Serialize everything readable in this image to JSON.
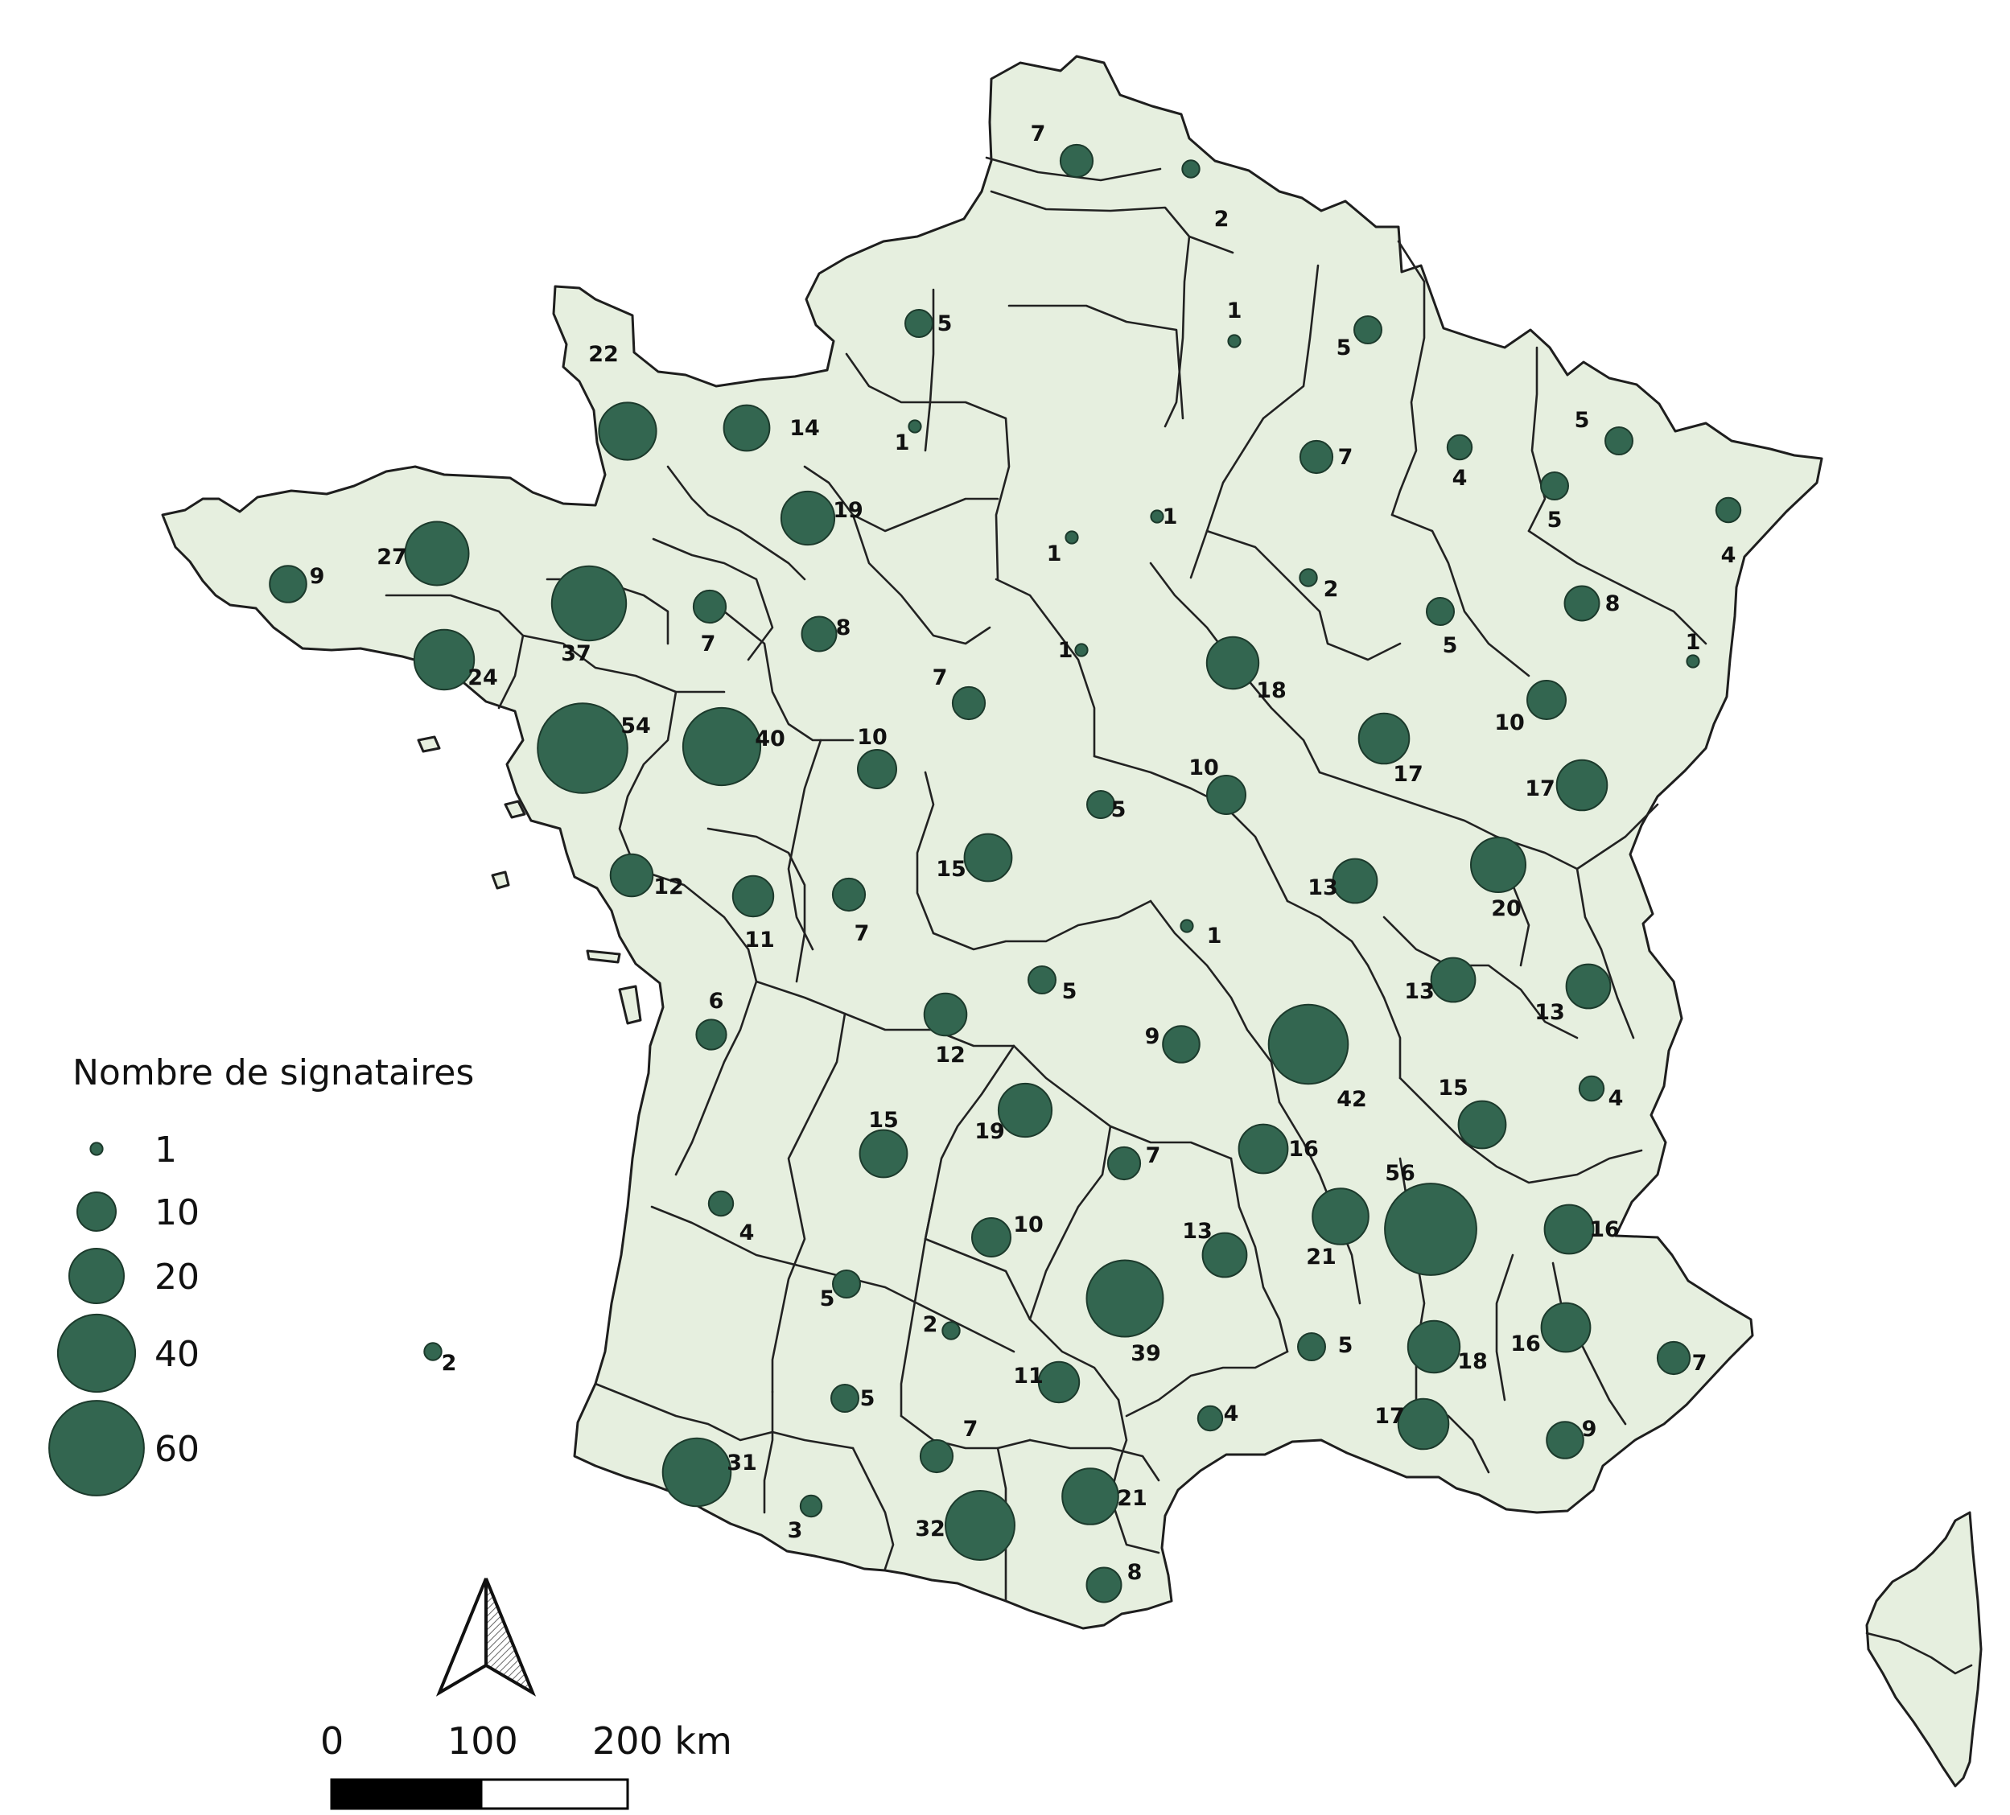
{
  "colors": {
    "land": "#e6efdf",
    "bubble": "#336650",
    "border": "#222222"
  },
  "legend": {
    "title": "Nombre de signataires",
    "entries": [
      {
        "label": "1",
        "value": 1
      },
      {
        "label": "10",
        "value": 10
      },
      {
        "label": "20",
        "value": 20
      },
      {
        "label": "40",
        "value": 40
      },
      {
        "label": "60",
        "value": 60
      }
    ]
  },
  "scale": {
    "labels": [
      "0",
      "100",
      "200 km"
    ]
  },
  "north_arrow": "north-arrow-icon",
  "departments": [
    {
      "label": "7",
      "value": 7
    },
    {
      "label": "2",
      "value": 2
    },
    {
      "label": "5",
      "value": 5
    },
    {
      "label": "1",
      "value": 1
    },
    {
      "label": "5",
      "value": 5
    },
    {
      "label": "22",
      "value": 22
    },
    {
      "label": "14",
      "value": 14
    },
    {
      "label": "1",
      "value": 1
    },
    {
      "label": "7",
      "value": 7
    },
    {
      "label": "4",
      "value": 4
    },
    {
      "label": "5",
      "value": 5
    },
    {
      "label": "5",
      "value": 5
    },
    {
      "label": "4",
      "value": 4
    },
    {
      "label": "27",
      "value": 27
    },
    {
      "label": "19",
      "value": 19
    },
    {
      "label": "1",
      "value": 1
    },
    {
      "label": "1",
      "value": 1
    },
    {
      "label": "9",
      "value": 9
    },
    {
      "label": "37",
      "value": 37
    },
    {
      "label": "7",
      "value": 7
    },
    {
      "label": "8",
      "value": 8
    },
    {
      "label": "2",
      "value": 2
    },
    {
      "label": "5",
      "value": 5
    },
    {
      "label": "8",
      "value": 8
    },
    {
      "label": "1",
      "value": 1
    },
    {
      "label": "24",
      "value": 24
    },
    {
      "label": "1",
      "value": 1
    },
    {
      "label": "7",
      "value": 7
    },
    {
      "label": "18",
      "value": 18
    },
    {
      "label": "10",
      "value": 10
    },
    {
      "label": "54",
      "value": 54
    },
    {
      "label": "40",
      "value": 40
    },
    {
      "label": "10",
      "value": 10
    },
    {
      "label": "17",
      "value": 17
    },
    {
      "label": "17",
      "value": 17
    },
    {
      "label": "10",
      "value": 10
    },
    {
      "label": "5",
      "value": 5
    },
    {
      "label": "15",
      "value": 15
    },
    {
      "label": "13",
      "value": 13
    },
    {
      "label": "20",
      "value": 20
    },
    {
      "label": "12",
      "value": 12
    },
    {
      "label": "11",
      "value": 11
    },
    {
      "label": "7",
      "value": 7
    },
    {
      "label": "1",
      "value": 1
    },
    {
      "label": "13",
      "value": 13
    },
    {
      "label": "13",
      "value": 13
    },
    {
      "label": "6",
      "value": 6
    },
    {
      "label": "5",
      "value": 5
    },
    {
      "label": "12",
      "value": 12
    },
    {
      "label": "9",
      "value": 9
    },
    {
      "label": "42",
      "value": 42
    },
    {
      "label": "4",
      "value": 4
    },
    {
      "label": "15",
      "value": 15
    },
    {
      "label": "19",
      "value": 19
    },
    {
      "label": "15",
      "value": 15
    },
    {
      "label": "7",
      "value": 7
    },
    {
      "label": "16",
      "value": 16
    },
    {
      "label": "56",
      "value": 56
    },
    {
      "label": "4",
      "value": 4
    },
    {
      "label": "10",
      "value": 10
    },
    {
      "label": "13",
      "value": 13
    },
    {
      "label": "21",
      "value": 21
    },
    {
      "label": "16",
      "value": 16
    },
    {
      "label": "5",
      "value": 5
    },
    {
      "label": "2",
      "value": 2
    },
    {
      "label": "39",
      "value": 39
    },
    {
      "label": "5",
      "value": 5
    },
    {
      "label": "16",
      "value": 16
    },
    {
      "label": "18",
      "value": 18
    },
    {
      "label": "7",
      "value": 7
    },
    {
      "label": "2",
      "value": 2
    },
    {
      "label": "11",
      "value": 11
    },
    {
      "label": "5",
      "value": 5
    },
    {
      "label": "4",
      "value": 4
    },
    {
      "label": "17",
      "value": 17
    },
    {
      "label": "7",
      "value": 7
    },
    {
      "label": "9",
      "value": 9
    },
    {
      "label": "31",
      "value": 31
    },
    {
      "label": "21",
      "value": 21
    },
    {
      "label": "3",
      "value": 3
    },
    {
      "label": "32",
      "value": 32
    },
    {
      "label": "8",
      "value": 8
    }
  ]
}
